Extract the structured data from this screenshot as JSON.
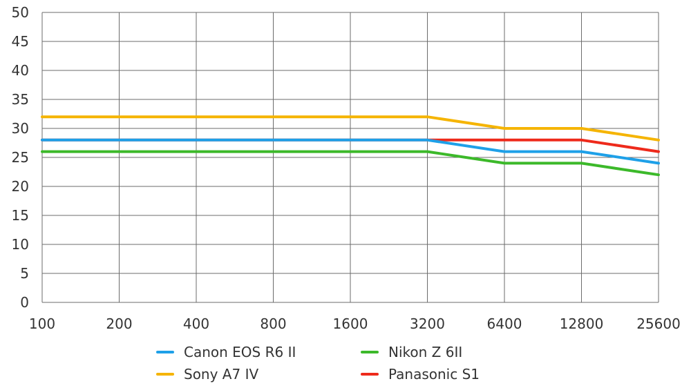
{
  "chart_data": {
    "type": "line",
    "x": [
      "100",
      "200",
      "400",
      "800",
      "1600",
      "3200",
      "6400",
      "12800",
      "25600"
    ],
    "y_ticks": [
      "0",
      "5",
      "10",
      "15",
      "20",
      "25",
      "30",
      "35",
      "40",
      "45",
      "50"
    ],
    "ylim": [
      0,
      50
    ],
    "grid": true,
    "legend_placement": "bottom",
    "series": [
      {
        "name": "Canon EOS R6 II",
        "color": "#1ea0e8",
        "values": [
          28,
          28,
          28,
          28,
          28,
          28,
          26,
          26,
          24
        ]
      },
      {
        "name": "Sony A7 IV",
        "color": "#f5b400",
        "values": [
          32,
          32,
          32,
          32,
          32,
          32,
          30,
          30,
          28
        ]
      },
      {
        "name": "Nikon Z 6II",
        "color": "#3cb92a",
        "values": [
          26,
          26,
          26,
          26,
          26,
          26,
          24,
          24,
          22
        ]
      },
      {
        "name": "Panasonic S1",
        "color": "#ee2a1b",
        "values": [
          28,
          28,
          28,
          28,
          28,
          28,
          28,
          28,
          26
        ]
      }
    ]
  }
}
